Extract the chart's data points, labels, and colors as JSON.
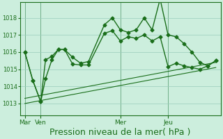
{
  "bg_color": "#cceedd",
  "grid_color": "#99ccbb",
  "line_color": "#1a6e1a",
  "marker_color": "#1a6e1a",
  "xlabel": "Pression niveau de la mer( hPa )",
  "xlabel_fontsize": 9,
  "yticks": [
    1013,
    1014,
    1015,
    1016,
    1017,
    1018
  ],
  "ylim": [
    1012.3,
    1018.9
  ],
  "xtick_labels": [
    "Mar",
    "Ven",
    "Mer",
    "Jeu"
  ],
  "xtick_positions": [
    0,
    1,
    6,
    9
  ],
  "xlim": [
    -0.3,
    12.3
  ],
  "vlines": [
    0,
    1,
    6,
    9
  ],
  "series1_x": [
    0,
    0.5,
    1.0,
    1.3,
    1.7,
    2.1,
    2.5,
    3.0,
    3.5,
    4.0,
    5.0,
    5.5,
    6.0,
    6.5,
    7.0,
    7.5,
    8.0,
    8.5,
    9.0,
    9.5,
    10.0,
    10.5,
    11.0,
    11.5,
    12.0
  ],
  "series1_y": [
    1016.0,
    1014.35,
    1013.1,
    1015.55,
    1015.75,
    1016.15,
    1016.15,
    1015.7,
    1015.35,
    1015.45,
    1017.6,
    1018.0,
    1017.3,
    1017.15,
    1017.3,
    1018.0,
    1017.3,
    1019.1,
    1017.0,
    1016.9,
    1016.5,
    1016.0,
    1015.4,
    1015.2,
    1015.5
  ],
  "series2_x": [
    0,
    0.5,
    1.0,
    1.3,
    1.7,
    2.1,
    2.5,
    3.0,
    3.5,
    4.0,
    5.0,
    5.5,
    6.0,
    6.5,
    7.0,
    7.5,
    8.0,
    8.5,
    9.0,
    9.5,
    10.0,
    10.5,
    11.0,
    11.5,
    12.0
  ],
  "series2_y": [
    1016.0,
    1014.35,
    1013.1,
    1014.45,
    1015.55,
    1016.15,
    1016.15,
    1015.3,
    1015.25,
    1015.25,
    1017.1,
    1017.25,
    1016.65,
    1016.9,
    1016.8,
    1017.0,
    1016.65,
    1016.9,
    1015.15,
    1015.35,
    1015.2,
    1015.1,
    1015.0,
    1015.2,
    1015.5
  ],
  "series3_x": [
    0,
    12.0
  ],
  "series3_y": [
    1013.0,
    1015.1
  ],
  "series4_x": [
    0,
    12.0
  ],
  "series4_y": [
    1013.3,
    1015.4
  ],
  "figsize": [
    3.2,
    2.0
  ],
  "dpi": 100
}
